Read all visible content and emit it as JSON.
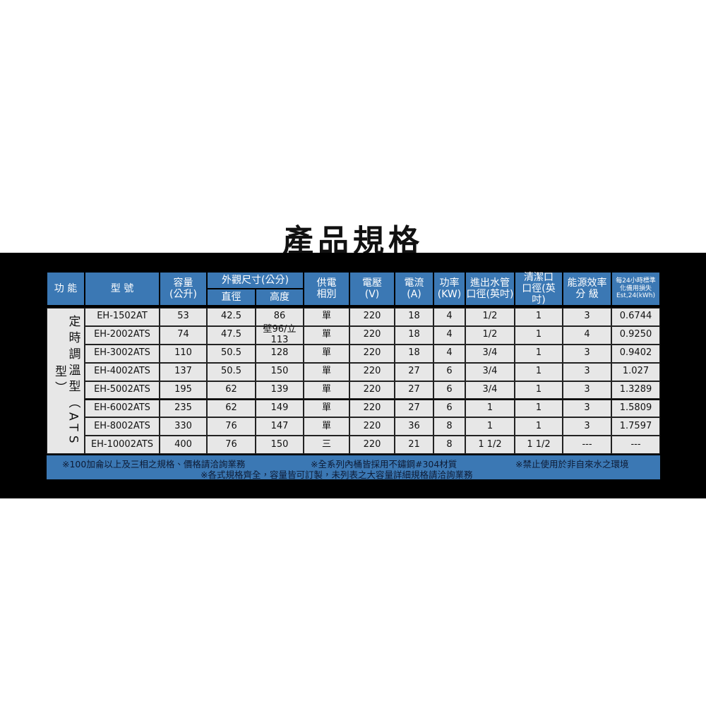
{
  "title": "產品規格",
  "table": {
    "header": [
      {
        "lines": [
          "功 能"
        ]
      },
      {
        "lines": [
          "型 號"
        ]
      },
      {
        "lines": [
          "容量",
          "(公升)"
        ]
      },
      {
        "label": "外觀尺寸(公分)",
        "sub": [
          "直徑",
          "高度"
        ]
      },
      {
        "lines": [
          "供電",
          "相別"
        ]
      },
      {
        "lines": [
          "電壓",
          "(V)"
        ]
      },
      {
        "lines": [
          "電流",
          "(A)"
        ]
      },
      {
        "lines": [
          "功率",
          "(KW)"
        ]
      },
      {
        "lines": [
          "進出水管",
          "口徑(英吋)"
        ]
      },
      {
        "lines": [
          "清潔口",
          "口徑(英吋)"
        ]
      },
      {
        "lines": [
          "能源效率",
          "分 級"
        ]
      },
      {
        "lines": [
          "每24小時標準",
          "化備用損失",
          "Est,24(kWh)"
        ]
      }
    ],
    "side_label": "定時調溫型（ATS型）",
    "rows": [
      [
        "EH-1502AT",
        "53",
        "42.5",
        "86",
        "單",
        "220",
        "18",
        "4",
        "1/2",
        "1",
        "3",
        "0.6744"
      ],
      [
        "EH-2002ATS",
        "74",
        "47.5",
        "壁96/立113",
        "單",
        "220",
        "18",
        "4",
        "1/2",
        "1",
        "4",
        "0.9250"
      ],
      [
        "EH-3002ATS",
        "110",
        "50.5",
        "128",
        "單",
        "220",
        "18",
        "4",
        "3/4",
        "1",
        "3",
        "0.9402"
      ],
      [
        "EH-4002ATS",
        "137",
        "50.5",
        "150",
        "單",
        "220",
        "27",
        "6",
        "3/4",
        "1",
        "3",
        "1.027"
      ],
      [
        "EH-5002ATS",
        "195",
        "62",
        "139",
        "單",
        "220",
        "27",
        "6",
        "3/4",
        "1",
        "3",
        "1.3289"
      ],
      [
        "EH-6002ATS",
        "235",
        "62",
        "149",
        "單",
        "220",
        "27",
        "6",
        "1",
        "1",
        "3",
        "1.5809"
      ],
      [
        "EH-8002ATS",
        "330",
        "76",
        "147",
        "單",
        "220",
        "36",
        "8",
        "1",
        "1",
        "3",
        "1.7597"
      ],
      [
        "EH-10002ATS",
        "400",
        "76",
        "150",
        "三",
        "220",
        "21",
        "8",
        "1 1/2",
        "1 1/2",
        "---",
        "---"
      ]
    ],
    "notes": [
      "※100加侖以上及三相之規格、價格請洽詢業務",
      "※全系列內桶皆採用不鏽鋼#304材質",
      "※禁止使用於非自來水之環境",
      "※各式規格齊全，容量皆可訂製，未列表之大容量詳細規格請洽詢業務"
    ]
  }
}
